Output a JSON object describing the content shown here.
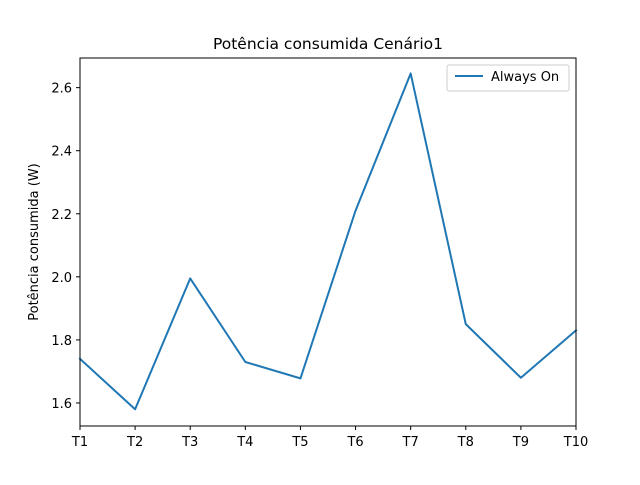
{
  "chart_data": {
    "type": "line",
    "title": "Potência consumida Cenário1",
    "xlabel": "",
    "ylabel": "Potência consumida (W)",
    "categories": [
      "T1",
      "T2",
      "T3",
      "T4",
      "T5",
      "T6",
      "T7",
      "T8",
      "T9",
      "T10"
    ],
    "series": [
      {
        "name": "Always On",
        "color": "#1f77b4",
        "values": [
          1.74,
          1.58,
          1.995,
          1.73,
          1.678,
          2.21,
          2.645,
          1.85,
          1.68,
          1.83
        ]
      }
    ],
    "ylim": [
      1.527,
      2.694
    ],
    "yticks": [
      1.6,
      1.8,
      2.0,
      2.2,
      2.4,
      2.6
    ],
    "ytick_labels": [
      "1.6",
      "1.8",
      "2.0",
      "2.2",
      "2.4",
      "2.6"
    ],
    "grid": false,
    "legend_position": "top-right"
  }
}
